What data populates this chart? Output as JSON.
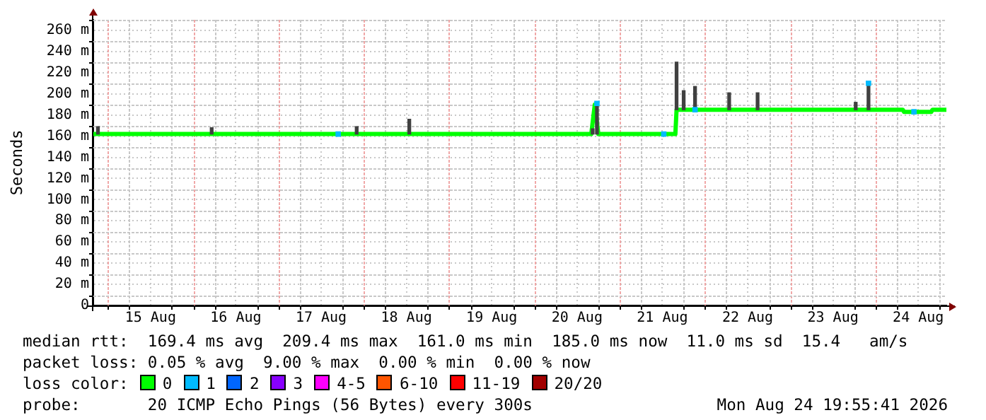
{
  "chart_data": {
    "type": "line",
    "ylabel": "Seconds",
    "xlim": [
      "2026-08-14T19:55",
      "2026-08-24T19:55"
    ],
    "xticks": [
      {
        "value": "2026-08-15T00:00",
        "label": null
      },
      {
        "value": "2026-08-15T06:00",
        "label": null
      },
      {
        "value": "2026-08-15T12:00",
        "label": "15 Aug"
      },
      {
        "value": "2026-08-15T18:00",
        "label": null
      },
      {
        "value": "2026-08-16T00:00",
        "label": null
      },
      {
        "value": "2026-08-16T06:00",
        "label": null
      },
      {
        "value": "2026-08-16T12:00",
        "label": "16 Aug"
      },
      {
        "value": "2026-08-16T18:00",
        "label": null
      },
      {
        "value": "2026-08-17T00:00",
        "label": null
      },
      {
        "value": "2026-08-17T06:00",
        "label": null
      },
      {
        "value": "2026-08-17T12:00",
        "label": "17 Aug"
      },
      {
        "value": "2026-08-17T18:00",
        "label": null
      },
      {
        "value": "2026-08-18T00:00",
        "label": null
      },
      {
        "value": "2026-08-18T06:00",
        "label": null
      },
      {
        "value": "2026-08-18T12:00",
        "label": "18 Aug"
      },
      {
        "value": "2026-08-18T18:00",
        "label": null
      },
      {
        "value": "2026-08-19T00:00",
        "label": null
      },
      {
        "value": "2026-08-19T06:00",
        "label": null
      },
      {
        "value": "2026-08-19T12:00",
        "label": "19 Aug"
      },
      {
        "value": "2026-08-19T18:00",
        "label": null
      },
      {
        "value": "2026-08-20T00:00",
        "label": null
      },
      {
        "value": "2026-08-20T06:00",
        "label": null
      },
      {
        "value": "2026-08-20T12:00",
        "label": "20 Aug"
      },
      {
        "value": "2026-08-20T18:00",
        "label": null
      },
      {
        "value": "2026-08-21T00:00",
        "label": null
      },
      {
        "value": "2026-08-21T06:00",
        "label": null
      },
      {
        "value": "2026-08-21T12:00",
        "label": "21 Aug"
      },
      {
        "value": "2026-08-21T18:00",
        "label": null
      },
      {
        "value": "2026-08-22T00:00",
        "label": null
      },
      {
        "value": "2026-08-22T06:00",
        "label": null
      },
      {
        "value": "2026-08-22T12:00",
        "label": "22 Aug"
      },
      {
        "value": "2026-08-22T18:00",
        "label": null
      },
      {
        "value": "2026-08-23T00:00",
        "label": null
      },
      {
        "value": "2026-08-23T06:00",
        "label": null
      },
      {
        "value": "2026-08-23T12:00",
        "label": "23 Aug"
      },
      {
        "value": "2026-08-23T18:00",
        "label": null
      },
      {
        "value": "2026-08-24T00:00",
        "label": null
      },
      {
        "value": "2026-08-24T06:00",
        "label": null
      },
      {
        "value": "2026-08-24T12:00",
        "label": "24 Aug"
      },
      {
        "value": "2026-08-24T18:00",
        "label": null
      }
    ],
    "ylim": [
      0,
      270
    ],
    "yticks": [
      0,
      {
        "value": 10,
        "label": null
      },
      {
        "value": 20,
        "label": "20 m"
      },
      {
        "value": 30,
        "label": null
      },
      {
        "value": 40,
        "label": "40 m"
      },
      {
        "value": 50,
        "label": null
      },
      {
        "value": 60,
        "label": "60 m"
      },
      {
        "value": 70,
        "label": null
      },
      {
        "value": 80,
        "label": "80 m"
      },
      {
        "value": 90,
        "label": null
      },
      {
        "value": 100,
        "label": "100 m"
      },
      {
        "value": 110,
        "label": null
      },
      {
        "value": 120,
        "label": "120 m"
      },
      {
        "value": 130,
        "label": null
      },
      {
        "value": 140,
        "label": "140 m"
      },
      {
        "value": 150,
        "label": null
      },
      {
        "value": 160,
        "label": "160 m"
      },
      {
        "value": 170,
        "label": null
      },
      {
        "value": 180,
        "label": "180 m"
      },
      {
        "value": 190,
        "label": null
      },
      {
        "value": 200,
        "label": "200 m"
      },
      {
        "value": 210,
        "label": null
      },
      {
        "value": 220,
        "label": "220 m"
      },
      {
        "value": 230,
        "label": null
      },
      {
        "value": 240,
        "label": "240 m"
      },
      {
        "value": 250,
        "label": null
      },
      {
        "value": 260,
        "label": "260 m"
      },
      {
        "value": 270,
        "label": null
      }
    ],
    "grid": true,
    "legend": "bottom",
    "legend_title": "loss color:",
    "series": [
      {
        "type": "bar",
        "color": "#404040",
        "x": [
          "2026-08-14T21:12",
          "2026-08-16T05:12",
          "2026-08-17T22:00",
          "2026-08-18T12:48",
          "2026-08-20T16:24",
          "2026-08-20T17:36",
          "2026-08-21T16:00",
          "2026-08-21T18:00",
          "2026-08-21T21:12",
          "2026-08-22T06:48",
          "2026-08-22T14:48",
          "2026-08-23T18:24",
          "2026-08-23T22:00"
        ],
        "base": [
          162,
          162,
          162,
          162,
          162,
          162,
          185,
          185,
          185,
          185,
          185,
          185,
          185
        ],
        "values": [
          7,
          6,
          7,
          14,
          5,
          30,
          45,
          18,
          22,
          16,
          16,
          7,
          25
        ]
      },
      {
        "name": "0",
        "color": "#00ff00",
        "x": [
          "2026-08-14T19:55",
          "2026-08-20T16:00",
          "2026-08-20T17:00",
          "2026-08-20T18:00",
          "2026-08-21T15:40",
          "2026-08-21T16:00",
          "2026-08-24T07:40",
          "2026-08-24T08:00",
          "2026-08-24T15:40",
          "2026-08-24T16:00",
          "2026-08-24T19:55"
        ],
        "values": [
          162,
          162,
          190,
          162,
          162,
          185,
          185,
          183,
          183,
          185,
          185
        ]
      },
      {
        "name": "1",
        "type": "scatter",
        "marker": "square",
        "color": "#00bbff",
        "x": [
          "2026-08-17T16:48",
          "2026-08-20T17:36",
          "2026-08-21T12:24",
          "2026-08-21T21:12",
          "2026-08-23T22:00",
          "2026-08-24T10:48"
        ],
        "values": [
          162,
          191,
          162,
          185,
          210,
          183
        ]
      },
      {
        "name": "2",
        "type": "scatter",
        "color": "#0066ff"
      },
      {
        "name": "3",
        "type": "scatter",
        "color": "#8800ff"
      },
      {
        "name": "4-5",
        "type": "scatter",
        "color": "#ff00ff"
      },
      {
        "name": "6-10",
        "type": "scatter",
        "color": "#ff5500"
      },
      {
        "name": "11-19",
        "type": "scatter",
        "color": "#ff0000"
      },
      {
        "name": "20/20",
        "type": "scatter",
        "color": "#a10000"
      }
    ],
    "annotations": [
      "median rtt:  169.4 ms avg  209.4 ms max  161.0 ms min  185.0 ms now  11.0 ms sd  15.4   am/s",
      "packet loss: 0.05 % avg  9.00 % max  0.00 % min  0.00 % now",
      "probe:       20 ICMP Echo Pings (56 Bytes) every 300s",
      "Mon Aug 24 19:55:41 2026"
    ]
  }
}
